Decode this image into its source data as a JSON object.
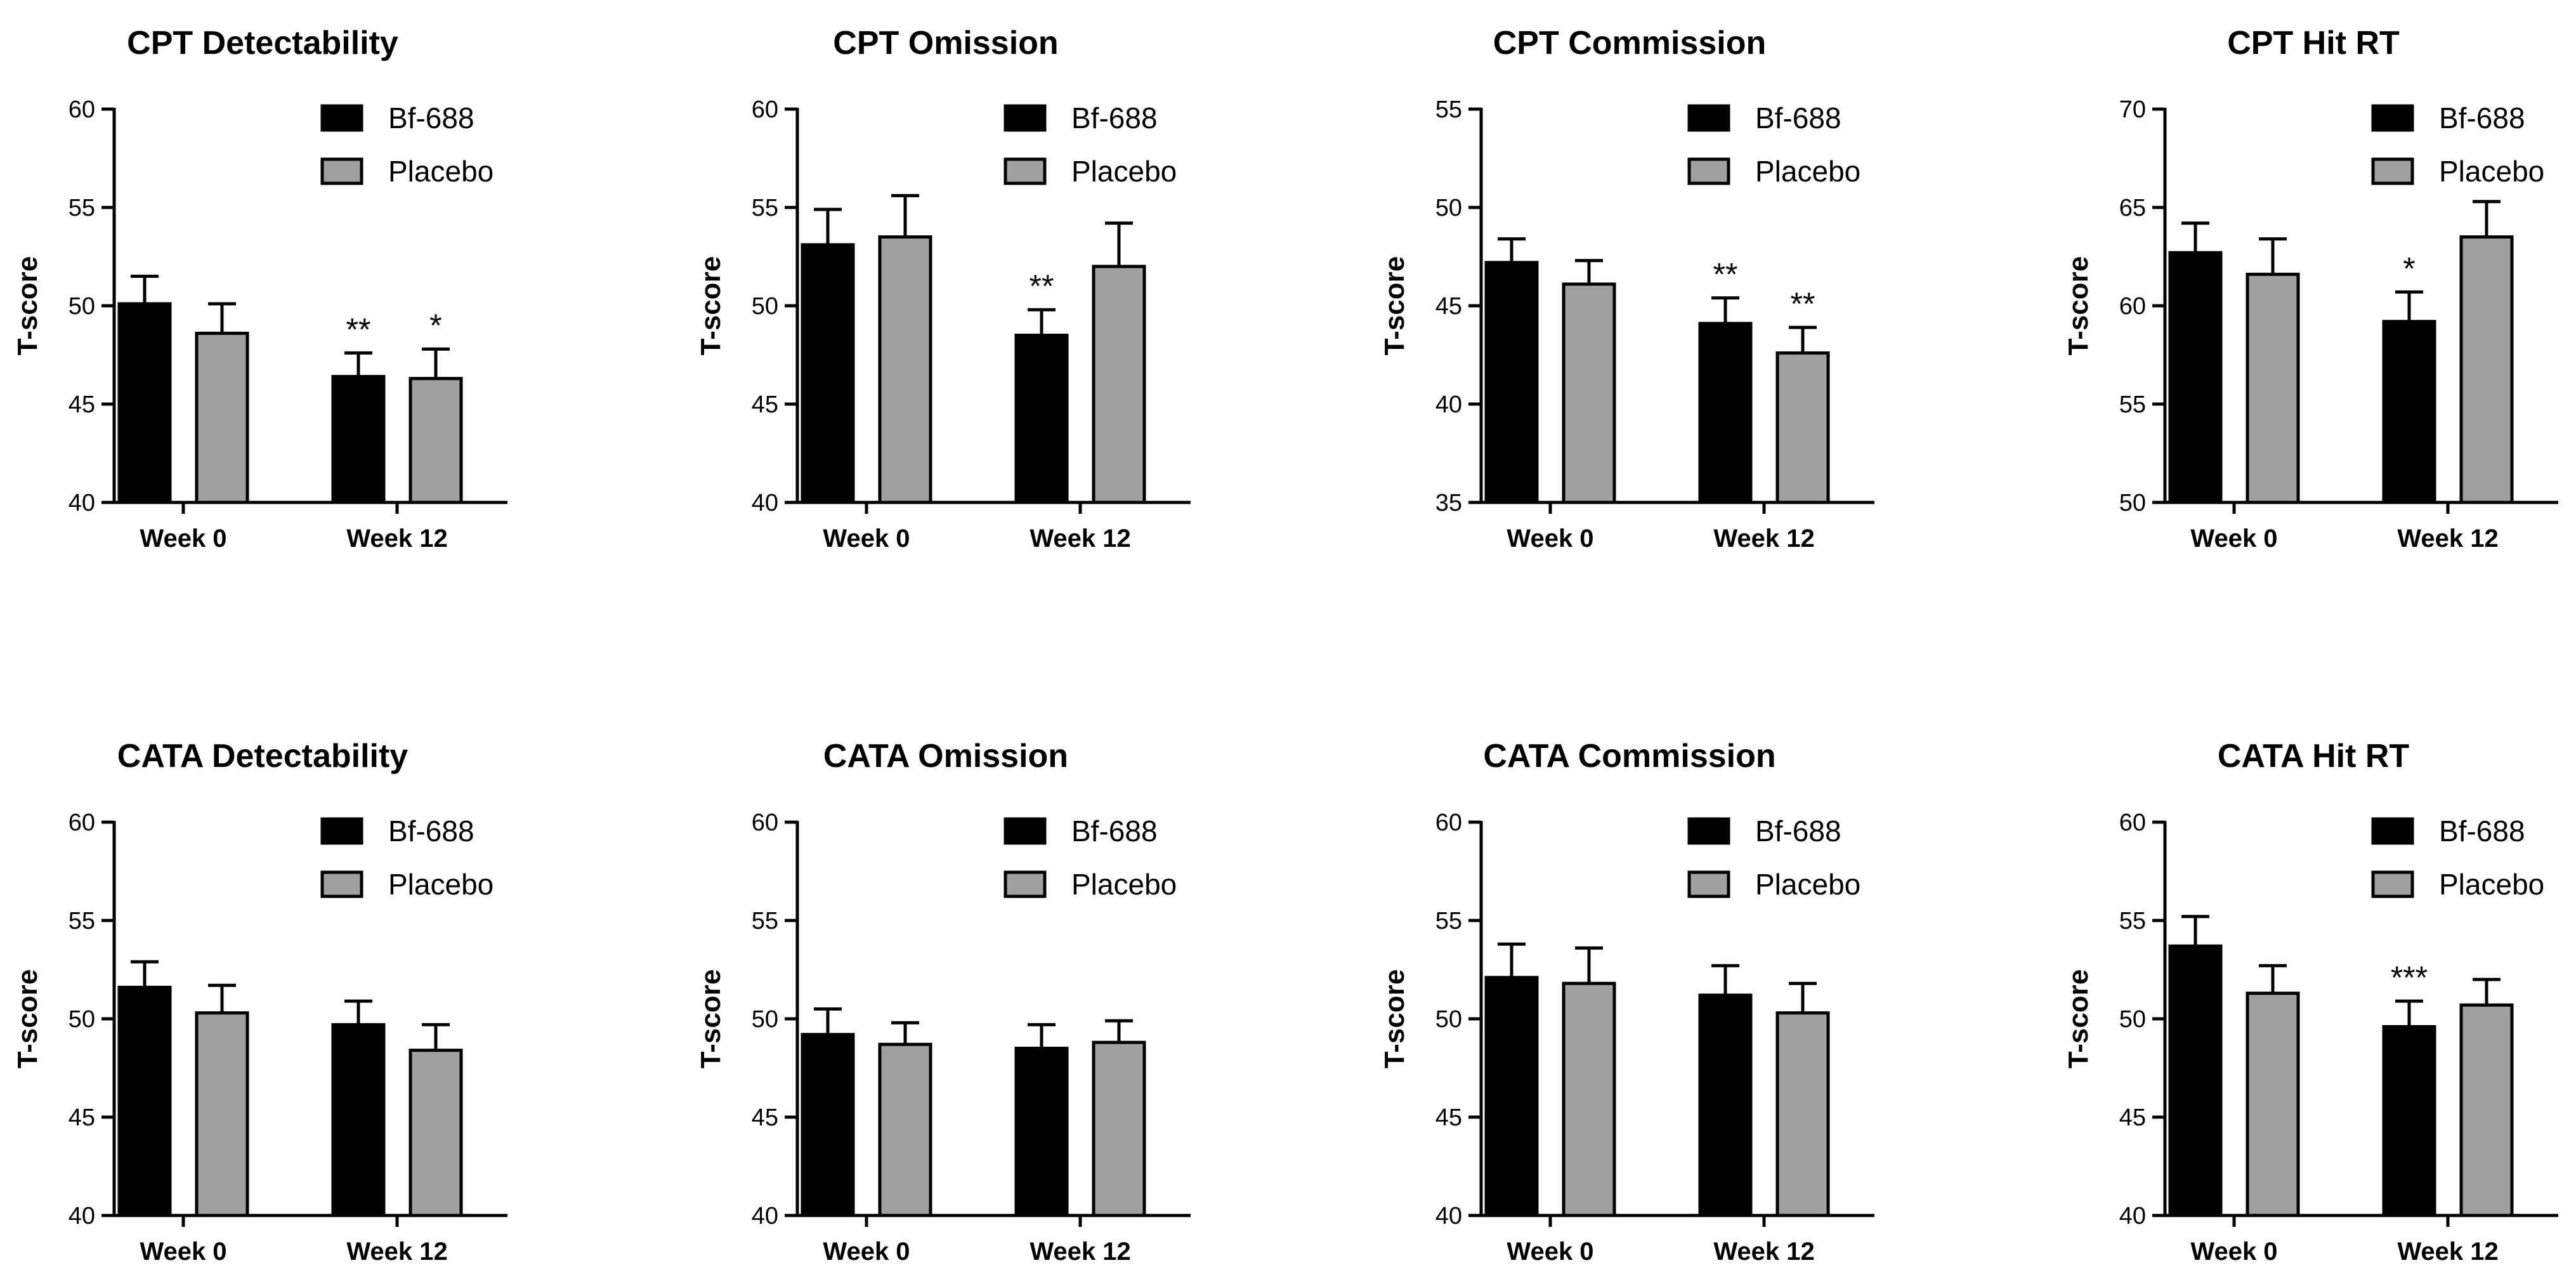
{
  "chart_data": [
    {
      "type": "bar",
      "title": "CPT Detectability",
      "ylabel": "T-score",
      "xlabel": "",
      "ylim": [
        40,
        60
      ],
      "yticks": [
        40,
        45,
        50,
        55,
        60
      ],
      "categories": [
        "Week 0",
        "Week 12"
      ],
      "series": [
        {
          "name": "Bf-688",
          "color": "#000000",
          "values": [
            50.1,
            46.4
          ],
          "errors": [
            1.4,
            1.2
          ]
        },
        {
          "name": "Placebo",
          "color": "#a0a0a0",
          "values": [
            48.6,
            46.3
          ],
          "errors": [
            1.5,
            1.5
          ]
        }
      ],
      "annotations": [
        {
          "category": 1,
          "series": 0,
          "text": "**"
        },
        {
          "category": 1,
          "series": 1,
          "text": "*"
        }
      ],
      "legend": "top-right"
    },
    {
      "type": "bar",
      "title": "CPT Omission",
      "ylabel": "T-score",
      "xlabel": "",
      "ylim": [
        40,
        60
      ],
      "yticks": [
        40,
        45,
        50,
        55,
        60
      ],
      "categories": [
        "Week 0",
        "Week 12"
      ],
      "series": [
        {
          "name": "Bf-688",
          "color": "#000000",
          "values": [
            53.1,
            48.5
          ],
          "errors": [
            1.8,
            1.3
          ]
        },
        {
          "name": "Placebo",
          "color": "#a0a0a0",
          "values": [
            53.5,
            52.0
          ],
          "errors": [
            2.1,
            2.2
          ]
        }
      ],
      "annotations": [
        {
          "category": 1,
          "series": 0,
          "text": "**"
        }
      ],
      "legend": "top-right"
    },
    {
      "type": "bar",
      "title": "CPT Commission",
      "ylabel": "T-score",
      "xlabel": "",
      "ylim": [
        35,
        55
      ],
      "yticks": [
        35,
        40,
        45,
        50,
        55
      ],
      "categories": [
        "Week 0",
        "Week 12"
      ],
      "series": [
        {
          "name": "Bf-688",
          "color": "#000000",
          "values": [
            47.2,
            44.1
          ],
          "errors": [
            1.2,
            1.3
          ]
        },
        {
          "name": "Placebo",
          "color": "#a0a0a0",
          "values": [
            46.1,
            42.6
          ],
          "errors": [
            1.2,
            1.3
          ]
        }
      ],
      "annotations": [
        {
          "category": 1,
          "series": 0,
          "text": "**"
        },
        {
          "category": 1,
          "series": 1,
          "text": "**"
        }
      ],
      "legend": "top-right"
    },
    {
      "type": "bar",
      "title": "CPT Hit RT",
      "ylabel": "T-score",
      "xlabel": "",
      "ylim": [
        50,
        70
      ],
      "yticks": [
        50,
        55,
        60,
        65,
        70
      ],
      "categories": [
        "Week 0",
        "Week 12"
      ],
      "series": [
        {
          "name": "Bf-688",
          "color": "#000000",
          "values": [
            62.7,
            59.2
          ],
          "errors": [
            1.5,
            1.5
          ]
        },
        {
          "name": "Placebo",
          "color": "#a0a0a0",
          "values": [
            61.6,
            63.5
          ],
          "errors": [
            1.8,
            1.8
          ]
        }
      ],
      "annotations": [
        {
          "category": 1,
          "series": 0,
          "text": "*"
        }
      ],
      "legend": "top-right"
    },
    {
      "type": "bar",
      "title": "CATA Detectability",
      "ylabel": "T-score",
      "xlabel": "",
      "ylim": [
        40,
        60
      ],
      "yticks": [
        40,
        45,
        50,
        55,
        60
      ],
      "categories": [
        "Week 0",
        "Week 12"
      ],
      "series": [
        {
          "name": "Bf-688",
          "color": "#000000",
          "values": [
            51.6,
            49.7
          ],
          "errors": [
            1.3,
            1.2
          ]
        },
        {
          "name": "Placebo",
          "color": "#a0a0a0",
          "values": [
            50.3,
            48.4
          ],
          "errors": [
            1.4,
            1.3
          ]
        }
      ],
      "annotations": [],
      "legend": "top-right"
    },
    {
      "type": "bar",
      "title": "CATA Omission",
      "ylabel": "T-score",
      "xlabel": "",
      "ylim": [
        40,
        60
      ],
      "yticks": [
        40,
        45,
        50,
        55,
        60
      ],
      "categories": [
        "Week 0",
        "Week 12"
      ],
      "series": [
        {
          "name": "Bf-688",
          "color": "#000000",
          "values": [
            49.2,
            48.5
          ],
          "errors": [
            1.3,
            1.2
          ]
        },
        {
          "name": "Placebo",
          "color": "#a0a0a0",
          "values": [
            48.7,
            48.8
          ],
          "errors": [
            1.1,
            1.1
          ]
        }
      ],
      "annotations": [],
      "legend": "top-right"
    },
    {
      "type": "bar",
      "title": "CATA Commission",
      "ylabel": "T-score",
      "xlabel": "",
      "ylim": [
        40,
        60
      ],
      "yticks": [
        40,
        45,
        50,
        55,
        60
      ],
      "categories": [
        "Week 0",
        "Week 12"
      ],
      "series": [
        {
          "name": "Bf-688",
          "color": "#000000",
          "values": [
            52.1,
            51.2
          ],
          "errors": [
            1.7,
            1.5
          ]
        },
        {
          "name": "Placebo",
          "color": "#a0a0a0",
          "values": [
            51.8,
            50.3
          ],
          "errors": [
            1.8,
            1.5
          ]
        }
      ],
      "annotations": [],
      "legend": "top-right"
    },
    {
      "type": "bar",
      "title": "CATA Hit RT",
      "ylabel": "T-score",
      "xlabel": "",
      "ylim": [
        40,
        60
      ],
      "yticks": [
        40,
        45,
        50,
        55,
        60
      ],
      "categories": [
        "Week 0",
        "Week 12"
      ],
      "series": [
        {
          "name": "Bf-688",
          "color": "#000000",
          "values": [
            53.7,
            49.6
          ],
          "errors": [
            1.5,
            1.3
          ]
        },
        {
          "name": "Placebo",
          "color": "#a0a0a0",
          "values": [
            51.3,
            50.7
          ],
          "errors": [
            1.4,
            1.3
          ]
        }
      ],
      "annotations": [
        {
          "category": 1,
          "series": 0,
          "text": "***"
        }
      ],
      "legend": "top-right"
    }
  ]
}
